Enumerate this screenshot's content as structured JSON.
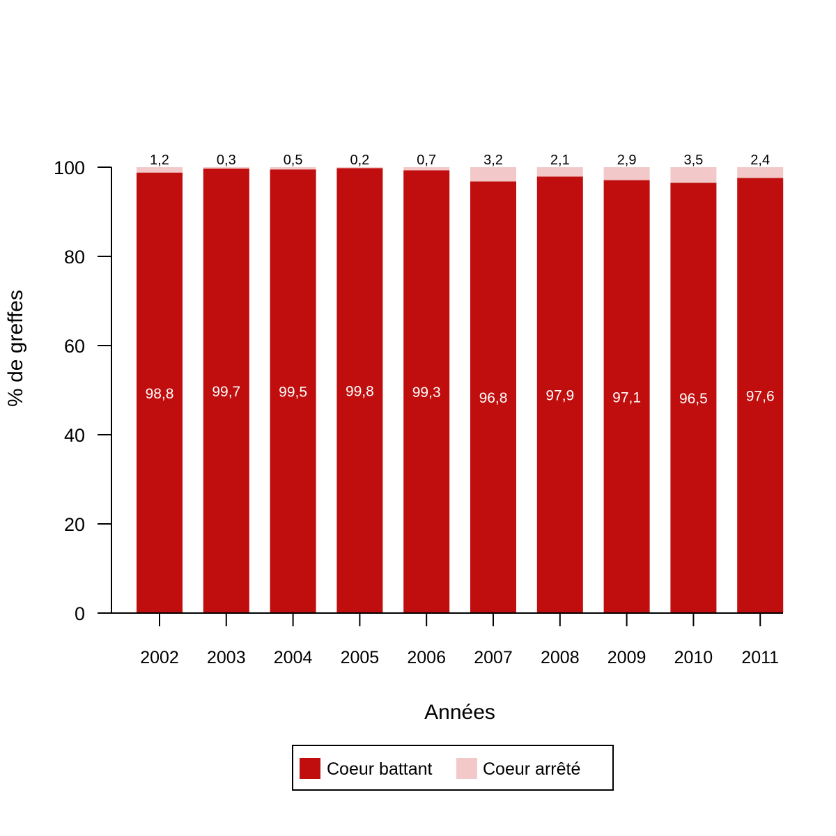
{
  "chart_data": {
    "type": "bar",
    "stacked": true,
    "categories": [
      "2002",
      "2003",
      "2004",
      "2005",
      "2006",
      "2007",
      "2008",
      "2009",
      "2010",
      "2011"
    ],
    "series": [
      {
        "name": "Coeur battant",
        "color": "#C00D0D",
        "values": [
          98.8,
          99.7,
          99.5,
          99.8,
          99.3,
          96.8,
          97.9,
          97.1,
          96.5,
          97.6
        ],
        "labels": [
          "98,8",
          "99,7",
          "99,5",
          "99,8",
          "99,3",
          "96,8",
          "97,9",
          "97,1",
          "96,5",
          "97,6"
        ]
      },
      {
        "name": "Coeur arrêté",
        "color": "#F2C8C8",
        "values": [
          1.2,
          0.3,
          0.5,
          0.2,
          0.7,
          3.2,
          2.1,
          2.9,
          3.5,
          2.4
        ],
        "labels": [
          "1,2",
          "0,3",
          "0,5",
          "0,2",
          "0,7",
          "3,2",
          "2,1",
          "2,9",
          "3,5",
          "2,4"
        ]
      }
    ],
    "xlabel": "Années",
    "ylabel": "% de greffes",
    "ylim": [
      0,
      100
    ],
    "yticks": [
      0,
      20,
      40,
      60,
      80,
      100
    ],
    "grid": false,
    "legend_position": "bottom"
  }
}
